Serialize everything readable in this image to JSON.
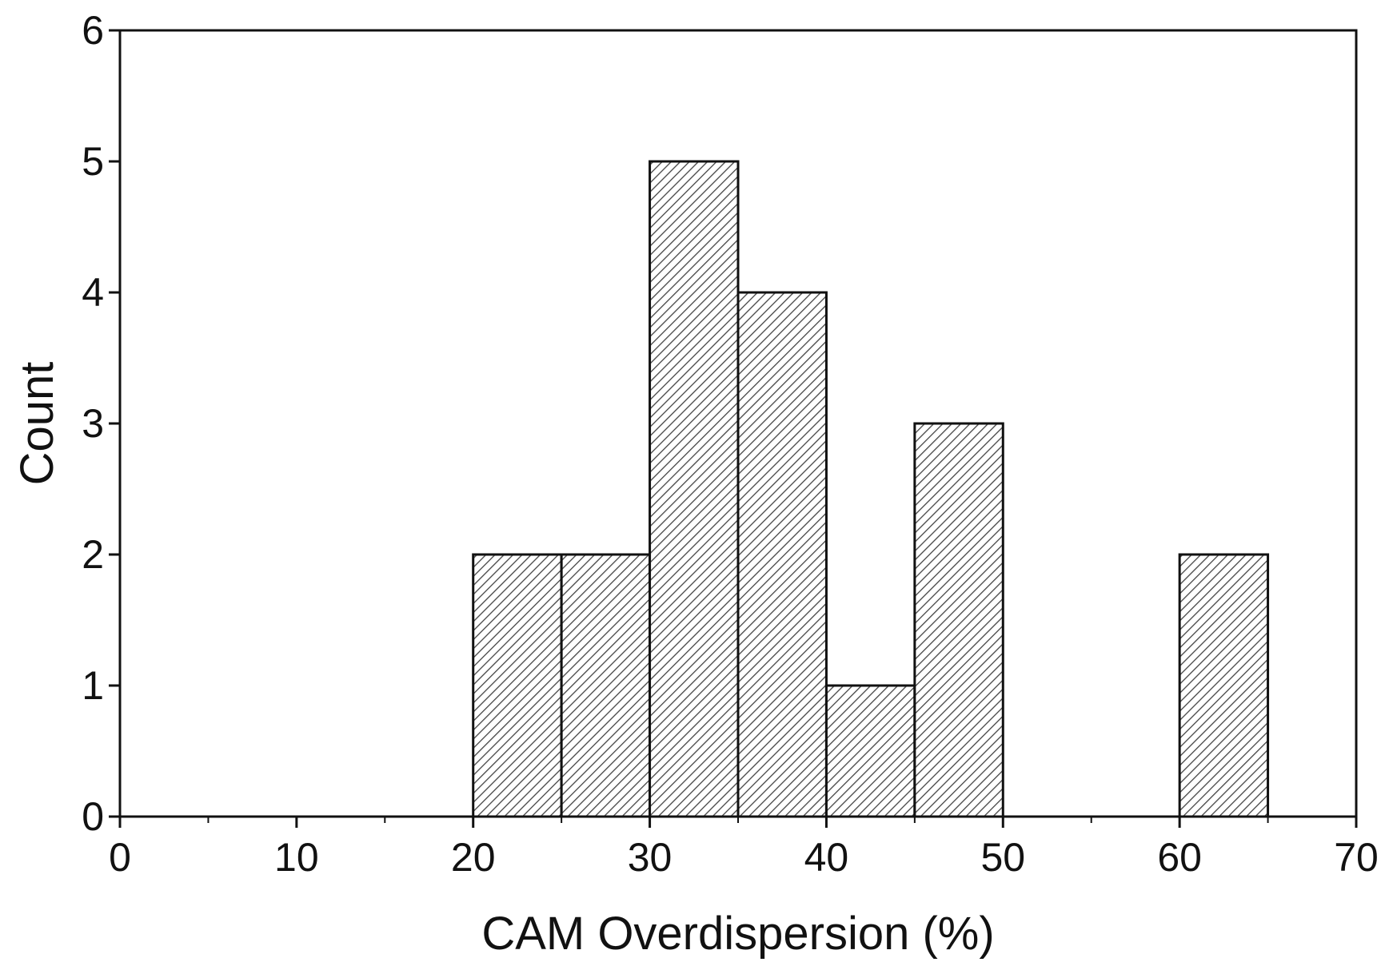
{
  "chart_data": {
    "type": "bar",
    "title": "",
    "xlabel": "CAM Overdispersion (%)",
    "ylabel": "Count",
    "xlim": [
      0,
      70
    ],
    "ylim": [
      0,
      6
    ],
    "x_ticks": [
      0,
      10,
      20,
      30,
      40,
      50,
      60,
      70
    ],
    "x_minor_ticks": [
      5,
      15,
      25,
      35,
      45,
      55,
      65
    ],
    "y_ticks": [
      0,
      1,
      2,
      3,
      4,
      5,
      6
    ],
    "bin_width": 5,
    "bins": [
      {
        "start": 20,
        "end": 25,
        "count": 2
      },
      {
        "start": 25,
        "end": 30,
        "count": 2
      },
      {
        "start": 30,
        "end": 35,
        "count": 5
      },
      {
        "start": 35,
        "end": 40,
        "count": 4
      },
      {
        "start": 40,
        "end": 45,
        "count": 1
      },
      {
        "start": 45,
        "end": 50,
        "count": 3
      },
      {
        "start": 60,
        "end": 65,
        "count": 2
      }
    ],
    "bar_fill": "diagonal hatch",
    "grid": false,
    "legend": "none"
  },
  "colors": {
    "stroke": "#111111",
    "hatch": "#444444",
    "background": "#ffffff"
  }
}
